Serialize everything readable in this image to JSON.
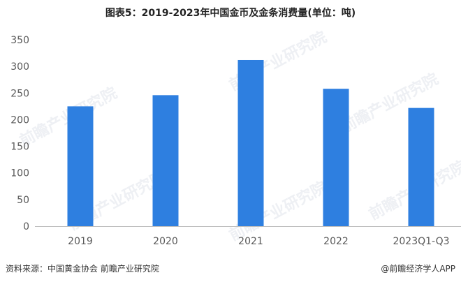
{
  "title": "图表5：2019-2023年中国金币及金条消费量(单位：吨)",
  "watermark_text": "前瞻产业研究院",
  "footer": {
    "source": "资料来源：中国黄金协会 前瞻产业研究院",
    "brand": "@前瞻经济学人APP"
  },
  "colors": {
    "bar": "#2E7FE0",
    "axis": "#bfbfbf",
    "tick_text": "#595959"
  },
  "chart_data": {
    "type": "bar",
    "categories": [
      "2019",
      "2020",
      "2021",
      "2022",
      "2023Q1-Q3"
    ],
    "values": [
      225,
      246,
      312,
      258,
      222
    ],
    "y_ticks": [
      0,
      50,
      100,
      150,
      200,
      250,
      300,
      350
    ],
    "ylim": [
      0,
      350
    ],
    "grid": false
  }
}
